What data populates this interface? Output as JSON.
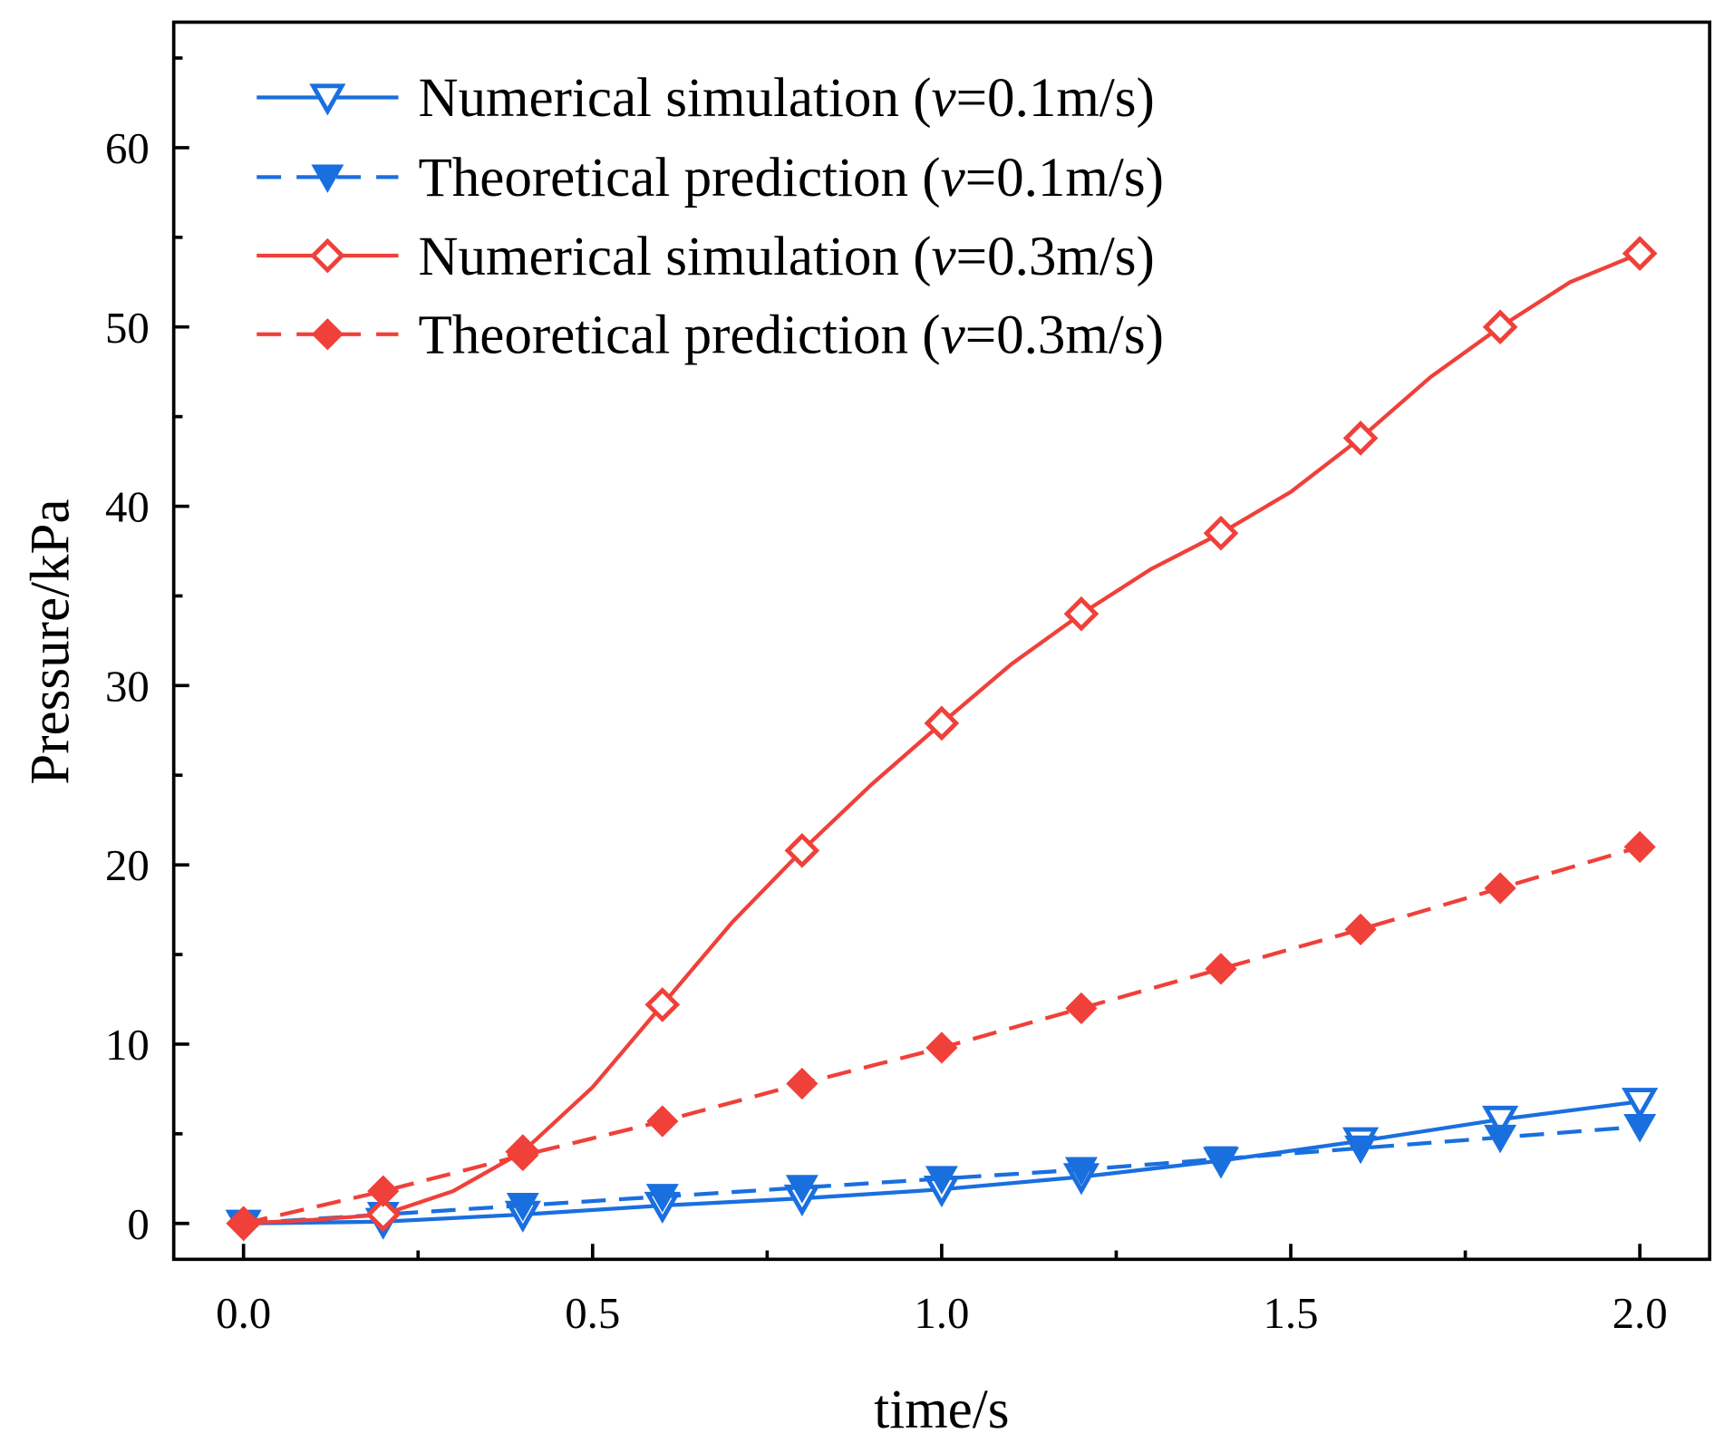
{
  "chart_data": {
    "type": "line",
    "title": "",
    "xlabel": "time/s",
    "ylabel": "Pressure/kPa",
    "xlim": [
      -0.1,
      2.1
    ],
    "ylim": [
      -2,
      67
    ],
    "xticks": [
      0.0,
      0.5,
      1.0,
      1.5,
      2.0
    ],
    "xtick_labels": [
      "0.0",
      "0.5",
      "1.0",
      "1.5",
      "2.0"
    ],
    "yticks": [
      0,
      10,
      20,
      30,
      40,
      50,
      60
    ],
    "ytick_labels": [
      "0",
      "10",
      "20",
      "30",
      "40",
      "50",
      "60"
    ],
    "grid": false,
    "legend_placement": "top-left",
    "series": [
      {
        "name": "Numerical simulation (v=0.1m/s)",
        "legend_prefix": "Numerical simulation (",
        "legend_var": "v",
        "legend_suffix": "=0.1m/s)",
        "color": "#1a6fdf",
        "style": "solid",
        "marker": "triangle-down-open",
        "x": [
          0,
          0.2,
          0.4,
          0.6,
          0.8,
          1.0,
          1.2,
          1.4,
          1.6,
          1.8,
          2.0
        ],
        "y": [
          0,
          0.1,
          0.5,
          1.0,
          1.4,
          1.9,
          2.6,
          3.5,
          4.6,
          5.8,
          6.8
        ],
        "line_x": [
          0,
          0.2,
          0.4,
          0.6,
          0.8,
          1.0,
          1.2,
          1.4,
          1.6,
          1.8,
          2.0
        ],
        "line_y": [
          0,
          0.1,
          0.5,
          1.0,
          1.4,
          1.9,
          2.6,
          3.5,
          4.6,
          5.8,
          6.8
        ]
      },
      {
        "name": "Theoretical prediction (v=0.1m/s)",
        "legend_prefix": "Theoretical prediction (",
        "legend_var": "v",
        "legend_suffix": "=0.1m/s)",
        "color": "#1a6fdf",
        "style": "dashed",
        "marker": "triangle-down-filled",
        "x": [
          0,
          0.2,
          0.4,
          0.6,
          0.8,
          1.0,
          1.2,
          1.4,
          1.6,
          1.8,
          2.0
        ],
        "y": [
          0,
          0.5,
          1.0,
          1.5,
          2.0,
          2.5,
          3.0,
          3.6,
          4.2,
          4.8,
          5.4
        ],
        "line_x": [
          0,
          0.2,
          0.4,
          0.6,
          0.8,
          1.0,
          1.2,
          1.4,
          1.6,
          1.8,
          2.0
        ],
        "line_y": [
          0,
          0.5,
          1.0,
          1.5,
          2.0,
          2.5,
          3.0,
          3.6,
          4.2,
          4.8,
          5.4
        ]
      },
      {
        "name": "Numerical simulation (v=0.3m/s)",
        "legend_prefix": "Numerical simulation (",
        "legend_var": "v",
        "legend_suffix": "=0.3m/s)",
        "color": "#f0403a",
        "style": "solid",
        "marker": "diamond-open",
        "x": [
          0,
          0.2,
          0.4,
          0.6,
          0.8,
          1.0,
          1.2,
          1.4,
          1.6,
          1.8,
          2.0
        ],
        "y": [
          0,
          0.5,
          4.0,
          12.2,
          20.8,
          27.9,
          34.0,
          38.5,
          43.8,
          50.0,
          54.1
        ],
        "line_x": [
          0,
          0.1,
          0.2,
          0.3,
          0.4,
          0.5,
          0.6,
          0.7,
          0.8,
          0.9,
          1.0,
          1.1,
          1.2,
          1.3,
          1.4,
          1.5,
          1.6,
          1.7,
          1.8,
          1.9,
          2.0
        ],
        "line_y": [
          0,
          0.2,
          0.5,
          1.8,
          4.0,
          7.6,
          12.2,
          16.8,
          20.8,
          24.5,
          27.9,
          31.2,
          34.0,
          36.5,
          38.5,
          40.8,
          43.8,
          47.2,
          50.0,
          52.5,
          54.1
        ]
      },
      {
        "name": "Theoretical prediction (v=0.3m/s)",
        "legend_prefix": "Theoretical prediction (",
        "legend_var": "v",
        "legend_suffix": "=0.3m/s)",
        "color": "#f0403a",
        "style": "dashed",
        "marker": "diamond-filled",
        "x": [
          0,
          0.2,
          0.4,
          0.6,
          0.8,
          1.0,
          1.2,
          1.4,
          1.6,
          1.8,
          2.0
        ],
        "y": [
          0,
          1.8,
          3.8,
          5.7,
          7.8,
          9.8,
          12.0,
          14.2,
          16.4,
          18.7,
          21.0
        ],
        "line_x": [
          0,
          0.2,
          0.4,
          0.6,
          0.8,
          1.0,
          1.2,
          1.4,
          1.6,
          1.8,
          2.0
        ],
        "line_y": [
          0,
          1.8,
          3.8,
          5.7,
          7.8,
          9.8,
          12.0,
          14.2,
          16.4,
          18.7,
          21.0
        ]
      }
    ]
  }
}
